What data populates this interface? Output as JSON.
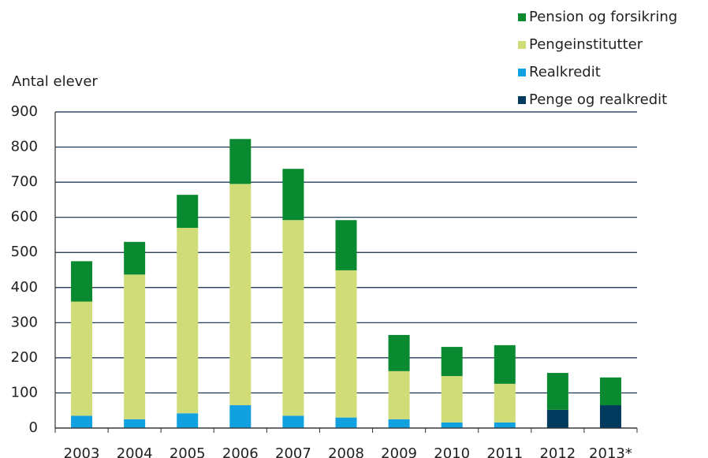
{
  "chart_data": {
    "type": "stacked-bar",
    "y_label": "Antal elever",
    "categories": [
      "2003",
      "2004",
      "2005",
      "2006",
      "2007",
      "2008",
      "2009",
      "2010",
      "2011",
      "2012",
      "2013*"
    ],
    "series": [
      {
        "name": "Penge og realkredit",
        "color": "#003a5c",
        "values": [
          null,
          null,
          null,
          null,
          null,
          null,
          null,
          null,
          null,
          52,
          65
        ]
      },
      {
        "name": "Realkredit",
        "color": "#11a0e0",
        "values": [
          35,
          25,
          42,
          65,
          35,
          30,
          25,
          16,
          16,
          null,
          null
        ]
      },
      {
        "name": "Pengeinstitutter",
        "color": "#cfdc78",
        "values": [
          325,
          412,
          528,
          630,
          557,
          419,
          137,
          132,
          110,
          null,
          null
        ]
      },
      {
        "name": "Pension og forsikring",
        "color": "#0a8a30",
        "values": [
          115,
          93,
          94,
          128,
          146,
          143,
          103,
          83,
          110,
          105,
          79
        ]
      }
    ],
    "ylim": [
      0,
      900
    ],
    "yticks": [
      0,
      100,
      200,
      300,
      400,
      500,
      600,
      700,
      800,
      900
    ],
    "grid": true,
    "legend": "top-right"
  }
}
